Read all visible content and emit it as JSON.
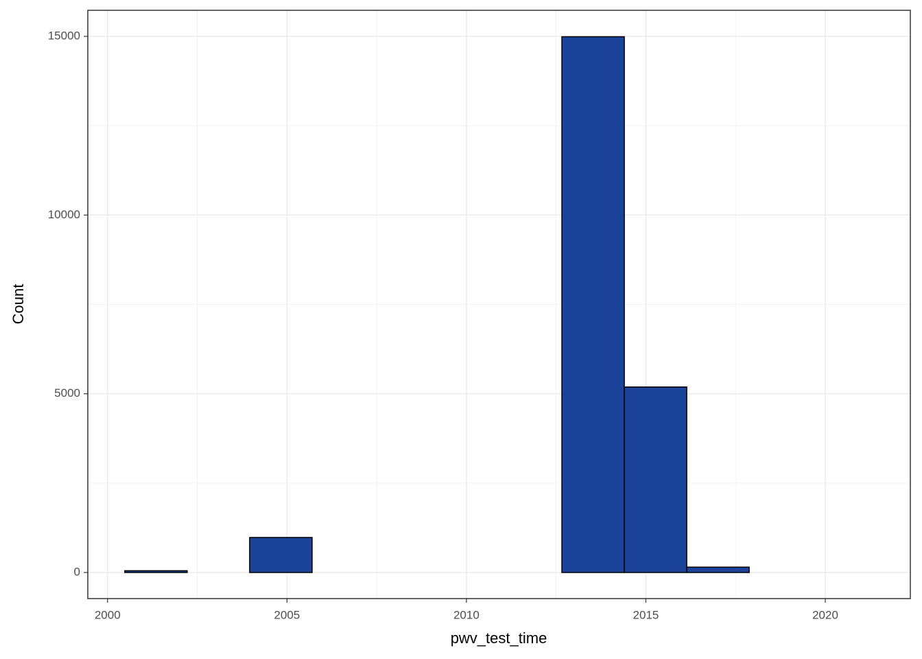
{
  "chart_data": {
    "type": "histogram",
    "x_label": "pwv_test_time",
    "y_label": "Count",
    "bins": [
      2000.48,
      2002.22,
      2003.96,
      2005.7,
      2007.44,
      2009.18,
      2010.92,
      2012.66,
      2014.4,
      2016.14,
      2017.88,
      2019.62,
      2021.36
    ],
    "values": [
      50,
      0,
      980,
      0,
      0,
      0,
      0,
      14990,
      5190,
      150,
      0,
      0
    ],
    "color": "#1a4399",
    "xlim": [
      1999.45,
      2022.37
    ],
    "xticks": [
      2000,
      2005,
      2010,
      2015,
      2020
    ],
    "ylim": [
      -730,
      15729
    ],
    "yticks": [
      0,
      5000,
      10000,
      15000
    ],
    "grid": true
  }
}
